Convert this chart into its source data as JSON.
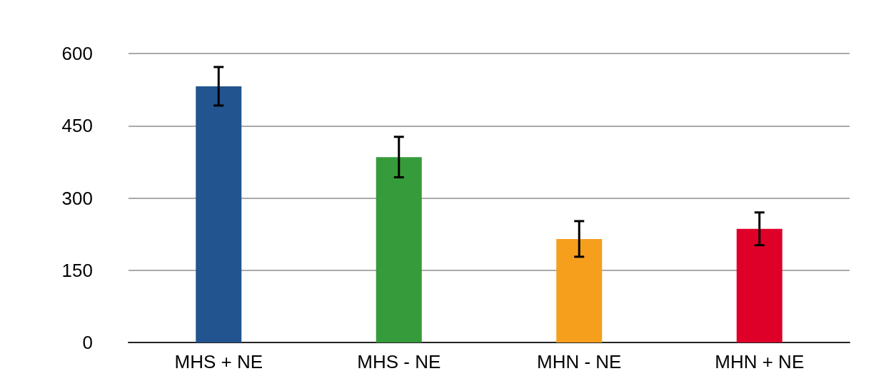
{
  "chart_data": {
    "type": "bar",
    "categories": [
      "MHS + NE",
      "MHS - NE",
      "MHN - NE",
      "MHN + NE"
    ],
    "values": [
      532,
      385,
      215,
      236
    ],
    "colors": [
      "#22548f",
      "#369b3a",
      "#f59f1d",
      "#de0029"
    ],
    "errors": [
      40,
      42,
      37,
      34
    ],
    "ylim": [
      0,
      600
    ],
    "yticks": [
      0,
      150,
      300,
      450,
      600
    ],
    "grid": "y"
  }
}
